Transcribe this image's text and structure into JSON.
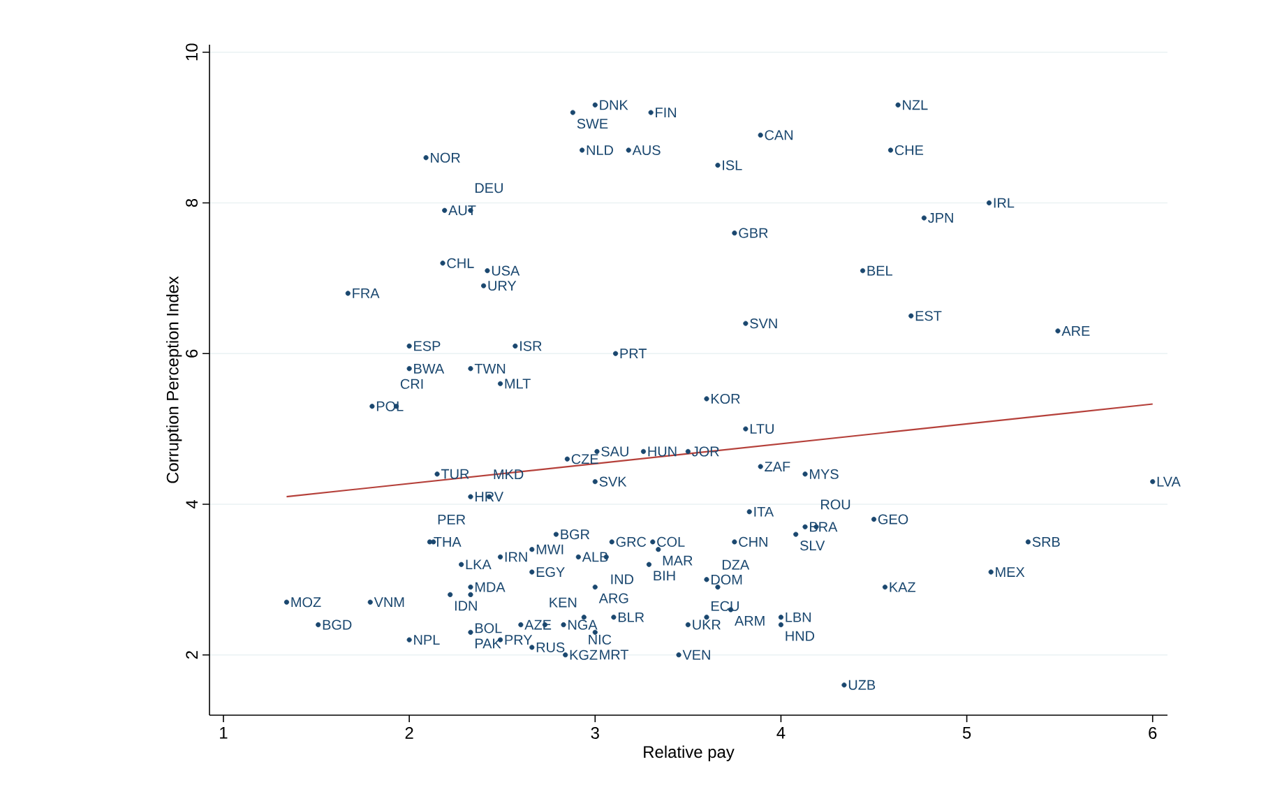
{
  "chart_data": {
    "type": "scatter",
    "xlabel": "Relative pay",
    "ylabel": "Corruption Perception Index",
    "xlim": [
      0.925,
      6.08
    ],
    "ylim": [
      1.2,
      10.1
    ],
    "xticks": [
      1,
      2,
      3,
      4,
      5,
      6
    ],
    "yticks": [
      2,
      4,
      6,
      8,
      10
    ],
    "grid": "y",
    "series": [
      {
        "marker": "circle",
        "color": "#1a476f",
        "x": [
          3.0,
          2.88,
          3.3,
          2.93,
          3.18,
          2.09,
          3.66,
          2.19,
          2.33,
          2.18,
          2.42,
          2.4,
          1.67,
          2.0,
          2.57,
          3.11,
          2.0,
          2.33,
          2.49,
          1.8,
          1.93,
          3.6,
          4.63,
          3.89,
          4.59,
          5.12,
          4.77,
          3.75,
          4.44,
          3.81,
          4.7,
          5.49,
          3.81,
          2.15,
          2.85,
          3.01,
          3.26,
          3.5,
          3.0,
          2.33,
          2.43,
          2.11,
          2.13,
          2.79,
          3.09,
          3.31,
          3.34,
          2.66,
          2.28,
          2.49,
          2.66,
          2.91,
          3.06,
          3.29,
          3.0,
          2.33,
          2.22,
          2.33,
          1.34,
          1.79,
          1.51,
          2.0,
          2.33,
          2.49,
          2.6,
          2.73,
          2.83,
          2.94,
          3.1,
          3.0,
          2.66,
          2.84,
          3.45,
          3.5,
          3.6,
          3.6,
          3.66,
          3.89,
          4.13,
          6.0,
          3.83,
          4.13,
          4.19,
          4.08,
          4.5,
          3.75,
          5.33,
          5.13,
          4.56,
          3.73,
          4.0,
          4.0,
          4.34
        ],
        "values": [
          9.3,
          9.2,
          9.2,
          8.7,
          8.7,
          8.6,
          8.5,
          7.9,
          7.9,
          7.2,
          7.1,
          6.9,
          6.8,
          6.1,
          6.1,
          6.0,
          5.8,
          5.8,
          5.6,
          5.3,
          5.3,
          5.4,
          9.3,
          8.9,
          8.7,
          8.0,
          7.8,
          7.6,
          7.1,
          6.4,
          6.5,
          6.3,
          5.0,
          4.4,
          4.6,
          4.7,
          4.7,
          4.7,
          4.3,
          4.1,
          4.1,
          3.5,
          3.5,
          3.6,
          3.5,
          3.5,
          3.4,
          3.4,
          3.2,
          3.3,
          3.1,
          3.3,
          3.3,
          3.2,
          2.9,
          2.9,
          2.8,
          2.8,
          2.7,
          2.7,
          2.4,
          2.2,
          2.3,
          2.2,
          2.4,
          2.4,
          2.4,
          2.5,
          2.5,
          2.3,
          2.1,
          2.0,
          2.0,
          2.4,
          2.5,
          3.0,
          2.9,
          4.5,
          4.4,
          4.3,
          3.9,
          3.7,
          3.7,
          3.6,
          3.8,
          3.5,
          3.5,
          3.1,
          2.9,
          2.6,
          2.5,
          2.4,
          1.6
        ]
      },
      {
        "type": "line",
        "color": "#b5403a",
        "x": [
          1.34,
          6.0
        ],
        "values": [
          4.1,
          5.33
        ]
      }
    ],
    "annotations": [
      {
        "text": "DNK",
        "x": 3.0,
        "y": 9.3
      },
      {
        "text": "SWE",
        "x": 2.88,
        "y": 9.2
      },
      {
        "text": "FIN",
        "x": 3.3,
        "y": 9.2
      },
      {
        "text": "NLD",
        "x": 2.93,
        "y": 8.7
      },
      {
        "text": "AUS",
        "x": 3.18,
        "y": 8.7
      },
      {
        "text": "NOR",
        "x": 2.09,
        "y": 8.6
      },
      {
        "text": "ISL",
        "x": 3.66,
        "y": 8.5
      },
      {
        "text": "AUT",
        "x": 2.19,
        "y": 7.9
      },
      {
        "text": "DEU",
        "x": 2.33,
        "y": 7.9
      },
      {
        "text": "CHL",
        "x": 2.18,
        "y": 7.2
      },
      {
        "text": "USA",
        "x": 2.42,
        "y": 7.1
      },
      {
        "text": "URY",
        "x": 2.4,
        "y": 6.9
      },
      {
        "text": "FRA",
        "x": 1.67,
        "y": 6.8
      },
      {
        "text": "ESP",
        "x": 2.0,
        "y": 6.1
      },
      {
        "text": "ISR",
        "x": 2.57,
        "y": 6.1
      },
      {
        "text": "PRT",
        "x": 3.11,
        "y": 6.0
      },
      {
        "text": "BWA",
        "x": 2.0,
        "y": 5.8
      },
      {
        "text": "TWN",
        "x": 2.33,
        "y": 5.8
      },
      {
        "text": "MLT",
        "x": 2.49,
        "y": 5.6
      },
      {
        "text": "POL",
        "x": 1.8,
        "y": 5.3
      },
      {
        "text": "CRI",
        "x": 1.93,
        "y": 5.3
      },
      {
        "text": "KOR",
        "x": 3.6,
        "y": 5.4
      },
      {
        "text": "NZL",
        "x": 4.63,
        "y": 9.3
      },
      {
        "text": "CAN",
        "x": 3.89,
        "y": 8.9
      },
      {
        "text": "CHE",
        "x": 4.59,
        "y": 8.7
      },
      {
        "text": "IRL",
        "x": 5.12,
        "y": 8.0
      },
      {
        "text": "JPN",
        "x": 4.77,
        "y": 7.8
      },
      {
        "text": "GBR",
        "x": 3.75,
        "y": 7.6
      },
      {
        "text": "BEL",
        "x": 4.44,
        "y": 7.1
      },
      {
        "text": "SVN",
        "x": 3.81,
        "y": 6.4
      },
      {
        "text": "EST",
        "x": 4.7,
        "y": 6.5
      },
      {
        "text": "ARE",
        "x": 5.49,
        "y": 6.3
      },
      {
        "text": "LTU",
        "x": 3.81,
        "y": 5.0
      },
      {
        "text": "TUR",
        "x": 2.15,
        "y": 4.4
      },
      {
        "text": "CZE",
        "x": 2.85,
        "y": 4.6
      },
      {
        "text": "SAU",
        "x": 3.01,
        "y": 4.7
      },
      {
        "text": "HUN",
        "x": 3.26,
        "y": 4.7
      },
      {
        "text": "JOR",
        "x": 3.5,
        "y": 4.7
      },
      {
        "text": "SVK",
        "x": 3.0,
        "y": 4.3
      },
      {
        "text": "HRV",
        "x": 2.33,
        "y": 4.1
      },
      {
        "text": "MKD",
        "x": 2.43,
        "y": 4.1
      },
      {
        "text": "THA",
        "x": 2.11,
        "y": 3.5
      },
      {
        "text": "PER",
        "x": 2.13,
        "y": 3.5
      },
      {
        "text": "BGR",
        "x": 2.79,
        "y": 3.6
      },
      {
        "text": "GRC",
        "x": 3.09,
        "y": 3.5
      },
      {
        "text": "COL",
        "x": 3.31,
        "y": 3.5
      },
      {
        "text": "MAR",
        "x": 3.34,
        "y": 3.4
      },
      {
        "text": "MWI",
        "x": 2.66,
        "y": 3.4
      },
      {
        "text": "LKA",
        "x": 2.28,
        "y": 3.2
      },
      {
        "text": "IRN",
        "x": 2.49,
        "y": 3.3
      },
      {
        "text": "EGY",
        "x": 2.66,
        "y": 3.1
      },
      {
        "text": "ALB",
        "x": 2.91,
        "y": 3.3
      },
      {
        "text": "IND",
        "x": 3.06,
        "y": 3.3
      },
      {
        "text": "BIH",
        "x": 3.29,
        "y": 3.2
      },
      {
        "text": "ARG",
        "x": 3.0,
        "y": 2.9
      },
      {
        "text": "MDA",
        "x": 2.33,
        "y": 2.9
      },
      {
        "text": "IDN",
        "x": 2.22,
        "y": 2.8
      },
      {
        "text": "BOL",
        "x": 2.33,
        "y": 2.8
      },
      {
        "text": "MOZ",
        "x": 1.34,
        "y": 2.7
      },
      {
        "text": "VNM",
        "x": 1.79,
        "y": 2.7
      },
      {
        "text": "BGD",
        "x": 1.51,
        "y": 2.4
      },
      {
        "text": "NPL",
        "x": 2.0,
        "y": 2.2
      },
      {
        "text": "PAK",
        "x": 2.33,
        "y": 2.3
      },
      {
        "text": "PRY",
        "x": 2.49,
        "y": 2.2
      },
      {
        "text": "AZE",
        "x": 2.6,
        "y": 2.4
      },
      {
        "text": "KEN",
        "x": 2.73,
        "y": 2.4
      },
      {
        "text": "NGA",
        "x": 2.83,
        "y": 2.4
      },
      {
        "text": "NIC",
        "x": 2.94,
        "y": 2.5
      },
      {
        "text": "BLR",
        "x": 3.1,
        "y": 2.5
      },
      {
        "text": "MRT",
        "x": 3.0,
        "y": 2.3
      },
      {
        "text": "RUS",
        "x": 2.66,
        "y": 2.1
      },
      {
        "text": "KGZ",
        "x": 2.84,
        "y": 2.0
      },
      {
        "text": "VEN",
        "x": 3.45,
        "y": 2.0
      },
      {
        "text": "UKR",
        "x": 3.5,
        "y": 2.4
      },
      {
        "text": "ECU",
        "x": 3.6,
        "y": 2.5
      },
      {
        "text": "DOM",
        "x": 3.6,
        "y": 3.0
      },
      {
        "text": "DZA",
        "x": 3.66,
        "y": 2.9
      },
      {
        "text": "ZAF",
        "x": 3.89,
        "y": 4.5
      },
      {
        "text": "MYS",
        "x": 4.13,
        "y": 4.4
      },
      {
        "text": "LVA",
        "x": 6.0,
        "y": 4.3
      },
      {
        "text": "ITA",
        "x": 3.83,
        "y": 3.9
      },
      {
        "text": "BRA",
        "x": 4.13,
        "y": 3.7
      },
      {
        "text": "ROU",
        "x": 4.19,
        "y": 3.7
      },
      {
        "text": "SLV",
        "x": 4.08,
        "y": 3.6
      },
      {
        "text": "GEO",
        "x": 4.5,
        "y": 3.8
      },
      {
        "text": "CHN",
        "x": 3.75,
        "y": 3.5
      },
      {
        "text": "SRB",
        "x": 5.33,
        "y": 3.5
      },
      {
        "text": "MEX",
        "x": 5.13,
        "y": 3.1
      },
      {
        "text": "KAZ",
        "x": 4.56,
        "y": 2.9
      },
      {
        "text": "ARM",
        "x": 3.73,
        "y": 2.6
      },
      {
        "text": "LBN",
        "x": 4.0,
        "y": 2.5
      },
      {
        "text": "HND",
        "x": 4.0,
        "y": 2.4
      },
      {
        "text": "UZB",
        "x": 4.34,
        "y": 1.6
      }
    ]
  }
}
